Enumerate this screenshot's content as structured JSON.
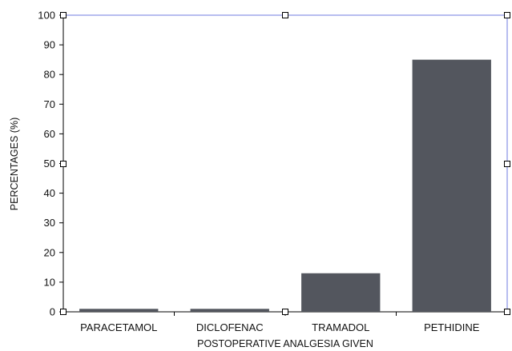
{
  "chart_data": {
    "type": "bar",
    "categories": [
      "PARACETAMOL",
      "DICLOFENAC",
      "TRAMADOL",
      "PETHIDINE"
    ],
    "values": [
      1,
      1,
      13,
      85
    ],
    "title": "",
    "xlabel": "POSTOPERATIVE ANALGESIA GIVEN",
    "ylabel": "PERCENTAGES (%)",
    "ylim": [
      0,
      100
    ],
    "yticks": [
      0,
      10,
      20,
      30,
      40,
      50,
      60,
      70,
      80,
      90,
      100
    ],
    "grid": false,
    "legend": "none",
    "bar_color": "#53565e",
    "selection_color": "#6f7be0",
    "axis_color": "#000000"
  }
}
